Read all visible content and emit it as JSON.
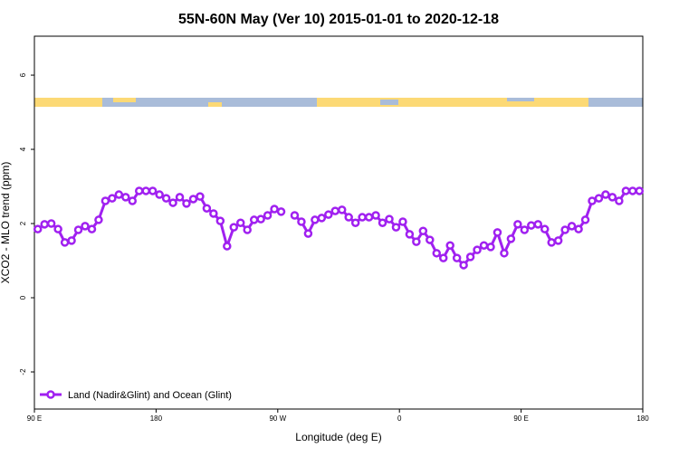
{
  "chart_data": {
    "type": "line",
    "title": "55N-60N May (Ver 10)   2015-01-01 to 2020-12-18",
    "x_label": "Longitude (deg E)",
    "y_label": "XCO2 - MLO trend (ppm)",
    "xlim": [
      90,
      540
    ],
    "ylim": [
      -3,
      7.05
    ],
    "xticks": [
      {
        "value": 90,
        "label": "90 E"
      },
      180,
      {
        "value": 270,
        "label": "90 W"
      },
      {
        "value": 360,
        "label": "0"
      },
      {
        "value": 450,
        "label": "90 E"
      },
      {
        "value": 540,
        "label": "180"
      }
    ],
    "yticks": [
      -2,
      0,
      2,
      4,
      6
    ],
    "legend_position": "bottom-left",
    "series": [
      {
        "name": "Land (Nadir&Glint) and Ocean (Glint)",
        "color": "#a020f0",
        "x": [
          92.5,
          97.5,
          102.5,
          107.5,
          112.5,
          117.5,
          122.5,
          127.5,
          132.5,
          137.5,
          142.5,
          147.5,
          152.5,
          157.5,
          162.5,
          167.5,
          172.5,
          177.5,
          182.5,
          187.5,
          192.5,
          197.5,
          202.5,
          207.5,
          212.5,
          217.5,
          222.5,
          227.5,
          232.5,
          237.5,
          242.5,
          247.5,
          252.5,
          257.5,
          262.5,
          267.5,
          272.5,
          277.5,
          282.5,
          287.5,
          292.5,
          297.5,
          302.5,
          307.5,
          312.5,
          317.5,
          322.5,
          327.5,
          332.5,
          337.5,
          342.5,
          347.5,
          352.5,
          357.5,
          362.5,
          367.5,
          372.5,
          377.5,
          382.5,
          387.5,
          392.5,
          397.5,
          402.5,
          407.5,
          412.5,
          417.5,
          422.5,
          427.5,
          432.5,
          437.5,
          442.5,
          447.5,
          452.5,
          457.5,
          462.5,
          467.5,
          472.5,
          477.5,
          482.5,
          487.5,
          492.5,
          497.5,
          502.5,
          507.5,
          512.5,
          517.5,
          522.5,
          527.5,
          532.5,
          537.5
        ],
        "values": [
          1.85,
          1.98,
          2.0,
          1.85,
          1.49,
          1.54,
          1.83,
          1.93,
          1.85,
          2.1,
          2.61,
          2.68,
          2.78,
          2.71,
          2.61,
          2.88,
          2.88,
          2.88,
          2.78,
          2.68,
          2.56,
          2.71,
          2.54,
          2.66,
          2.73,
          2.41,
          2.27,
          2.07,
          1.39,
          1.9,
          2.02,
          1.83,
          2.1,
          2.12,
          2.22,
          2.39,
          2.32,
          null,
          2.22,
          2.05,
          1.73,
          2.1,
          2.15,
          2.24,
          2.34,
          2.37,
          2.17,
          2.02,
          2.17,
          2.17,
          2.22,
          2.02,
          2.12,
          1.9,
          2.05,
          1.71,
          1.51,
          1.8,
          1.56,
          1.2,
          1.07,
          1.41,
          1.07,
          0.88,
          1.1,
          1.29,
          1.41,
          1.37,
          1.76,
          1.2,
          1.59,
          1.98,
          1.83,
          1.95,
          1.98,
          1.85,
          1.49,
          1.54,
          1.83,
          1.93,
          1.85,
          2.1,
          2.61,
          2.68,
          2.78,
          2.71,
          2.61,
          2.88,
          2.88,
          2.88
        ]
      }
    ]
  }
}
